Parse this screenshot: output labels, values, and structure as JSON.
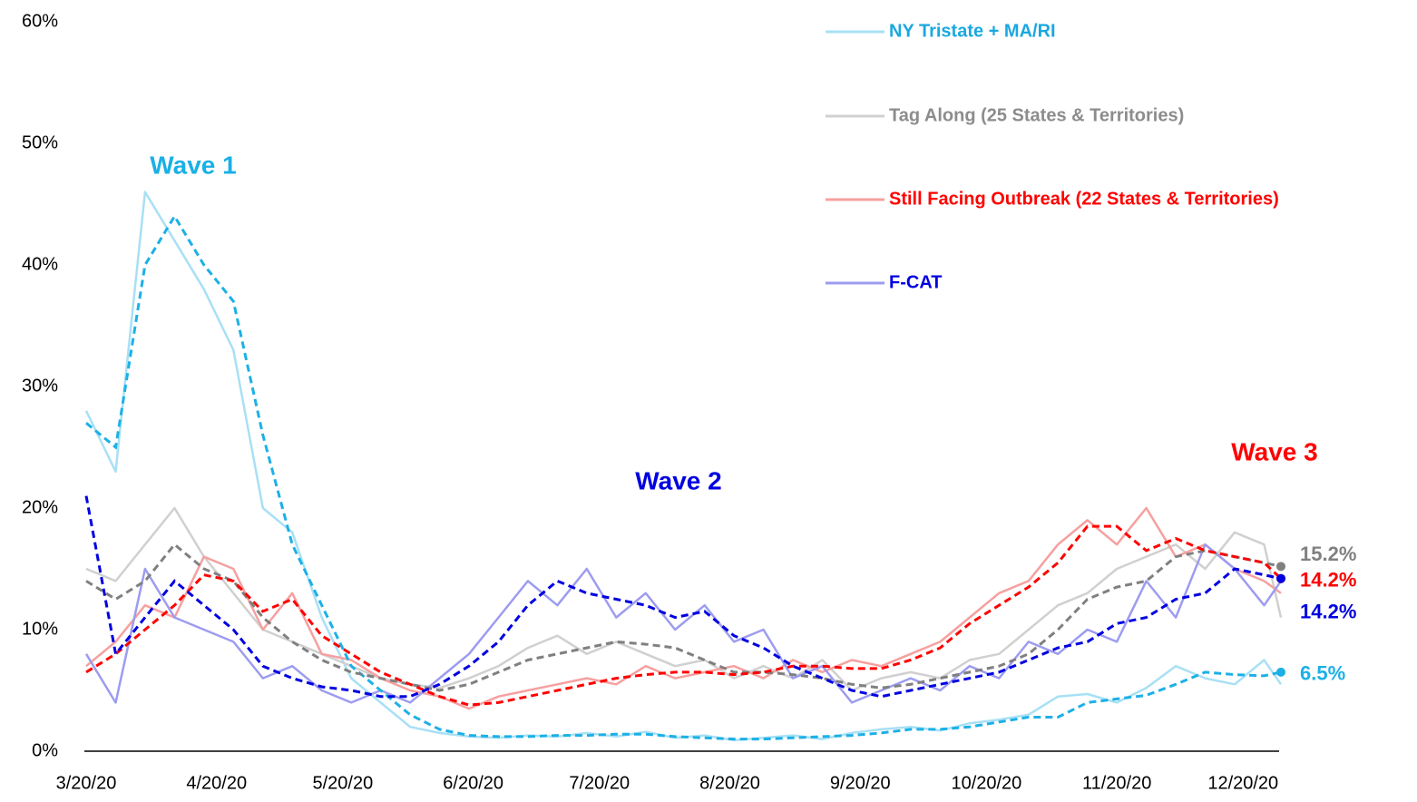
{
  "chart_data": {
    "type": "line",
    "x": [
      "3/20/20",
      "3/27/20",
      "4/3/20",
      "4/10/20",
      "4/17/20",
      "4/24/20",
      "5/1/20",
      "5/8/20",
      "5/15/20",
      "5/22/20",
      "5/29/20",
      "6/5/20",
      "6/12/20",
      "6/19/20",
      "6/26/20",
      "7/3/20",
      "7/10/20",
      "7/17/20",
      "7/24/20",
      "7/31/20",
      "8/7/20",
      "8/14/20",
      "8/21/20",
      "8/28/20",
      "9/4/20",
      "9/11/20",
      "9/18/20",
      "9/25/20",
      "10/2/20",
      "10/9/20",
      "10/16/20",
      "10/23/20",
      "10/30/20",
      "11/6/20",
      "11/13/20",
      "11/20/20",
      "11/27/20",
      "12/4/20",
      "12/11/20",
      "12/18/20",
      "12/25/20",
      "12/29/20"
    ],
    "xlim": [
      "3/20/20",
      "12/29/20"
    ],
    "xticks": [
      "3/20/20",
      "4/20/20",
      "5/20/20",
      "6/20/20",
      "7/20/20",
      "8/20/20",
      "9/20/20",
      "10/20/20",
      "11/20/20",
      "12/20/20"
    ],
    "ylim": [
      0,
      60
    ],
    "yticks": [
      {
        "value": 0,
        "label": "0%"
      },
      {
        "value": 10,
        "label": "10%"
      },
      {
        "value": 20,
        "label": "20%"
      },
      {
        "value": 30,
        "label": "30%"
      },
      {
        "value": 40,
        "label": "40%"
      },
      {
        "value": 50,
        "label": "50%"
      },
      {
        "value": 60,
        "label": "60%"
      }
    ],
    "series": [
      {
        "name": "NY Tristate + MA/RI",
        "color": "#a8e0f5",
        "label_color": "#1aa8e0",
        "values": [
          28,
          23,
          46,
          42,
          38,
          33,
          20,
          18,
          11,
          6,
          4,
          2,
          1.5,
          1.2,
          1.1,
          1.3,
          1.2,
          1.5,
          1.2,
          1.6,
          1.1,
          1.3,
          0.9,
          1.1,
          1.3,
          1.0,
          1.5,
          1.8,
          2.0,
          1.7,
          2.3,
          2.6,
          3.0,
          4.5,
          4.7,
          4.0,
          5.2,
          7.0,
          6.0,
          5.5,
          7.5,
          5.5
        ],
        "average": {
          "color": "#1cb0e6",
          "end_label": "6.5%",
          "values": [
            27,
            25,
            40,
            44,
            40,
            37,
            26,
            17,
            12,
            7,
            5,
            3,
            1.8,
            1.3,
            1.2,
            1.2,
            1.3,
            1.3,
            1.4,
            1.4,
            1.2,
            1.1,
            1.0,
            1.0,
            1.1,
            1.2,
            1.3,
            1.5,
            1.8,
            1.8,
            2.0,
            2.4,
            2.8,
            2.8,
            4.0,
            4.3,
            4.6,
            5.5,
            6.5,
            6.3,
            6.2,
            6.5
          ]
        }
      },
      {
        "name": "Tag Along (25 States & Territories)",
        "color": "#d0d0d0",
        "label_color": "#8c8c8c",
        "values": [
          15,
          14,
          17,
          20,
          16,
          13,
          10,
          9,
          8,
          7,
          6,
          5.5,
          5.2,
          6,
          7,
          8.5,
          9.5,
          8,
          9,
          8,
          7,
          7.5,
          6,
          7,
          6,
          7.5,
          5,
          6,
          6.5,
          6,
          7.5,
          8,
          10,
          12,
          13,
          15,
          16,
          17,
          15,
          18,
          17,
          11
        ],
        "average": {
          "color": "#808080",
          "end_label": "15.2%",
          "values": [
            14,
            12.5,
            14,
            17,
            15,
            14,
            11,
            9,
            7.5,
            6.5,
            6,
            5.5,
            5,
            5.5,
            6.5,
            7.5,
            8,
            8.5,
            9,
            8.8,
            8.5,
            7.5,
            6.5,
            6.5,
            6.3,
            6.0,
            5.5,
            5.2,
            5.5,
            6.0,
            6.5,
            7.0,
            8.0,
            10,
            12.5,
            13.5,
            14,
            16,
            16.5,
            16,
            15.5,
            15.2
          ]
        }
      },
      {
        "name": "Still Facing Outbreak (22 States & Territories)",
        "color": "#f6a0a0",
        "label_color": "#ff0000",
        "values": [
          7,
          9,
          12,
          11,
          16,
          15,
          10,
          13,
          8,
          7.5,
          6,
          5,
          4.5,
          3.5,
          4.5,
          5,
          5.5,
          6,
          5.5,
          7,
          6,
          6.5,
          7,
          6,
          7.5,
          6.5,
          7.5,
          7,
          8,
          9,
          11,
          13,
          14,
          17,
          19,
          17,
          20,
          16,
          17,
          15,
          14,
          13
        ],
        "average": {
          "color": "#ff0000",
          "end_label": "14.2%",
          "values": [
            6.5,
            8,
            10,
            12,
            14.5,
            14,
            11.5,
            12.5,
            9.5,
            8,
            6.5,
            5.5,
            4.5,
            3.8,
            4.0,
            4.5,
            5.0,
            5.5,
            6.0,
            6.3,
            6.5,
            6.5,
            6.3,
            6.5,
            7.0,
            7.0,
            6.8,
            6.8,
            7.5,
            8.5,
            10.5,
            12,
            13.5,
            15.5,
            18.5,
            18.5,
            16.5,
            17.5,
            16.5,
            16,
            15.5,
            14.2
          ]
        }
      },
      {
        "name": "F-CAT",
        "color": "#9d9cf0",
        "label_color": "#0000e0",
        "values": [
          8,
          4,
          15,
          11,
          10,
          9,
          6,
          7,
          5,
          4,
          5,
          4,
          6,
          8,
          11,
          14,
          12,
          15,
          11,
          13,
          10,
          12,
          9,
          10,
          6,
          7,
          4,
          5,
          6,
          5,
          7,
          6,
          9,
          8,
          10,
          9,
          14,
          11,
          17,
          15,
          12,
          14
        ],
        "average": {
          "color": "#0000e0",
          "end_label": "14.2%",
          "values": [
            21,
            8,
            11,
            14,
            12,
            10,
            7,
            6,
            5.3,
            5,
            4.5,
            4.5,
            5.5,
            7,
            9,
            12,
            14,
            13,
            12.5,
            12,
            11,
            11.5,
            9.5,
            8.5,
            7,
            6,
            5,
            4.5,
            5,
            5.5,
            6,
            6.5,
            7.5,
            8.5,
            9,
            10.5,
            11,
            12.5,
            13,
            15,
            14.5,
            14.2
          ]
        }
      }
    ],
    "annotations": [
      {
        "text": "Wave 1",
        "color": "#1ab0e6"
      },
      {
        "text": "Wave 2",
        "color": "#0000e0"
      },
      {
        "text": "Wave 3",
        "color": "#ff0000"
      }
    ]
  }
}
